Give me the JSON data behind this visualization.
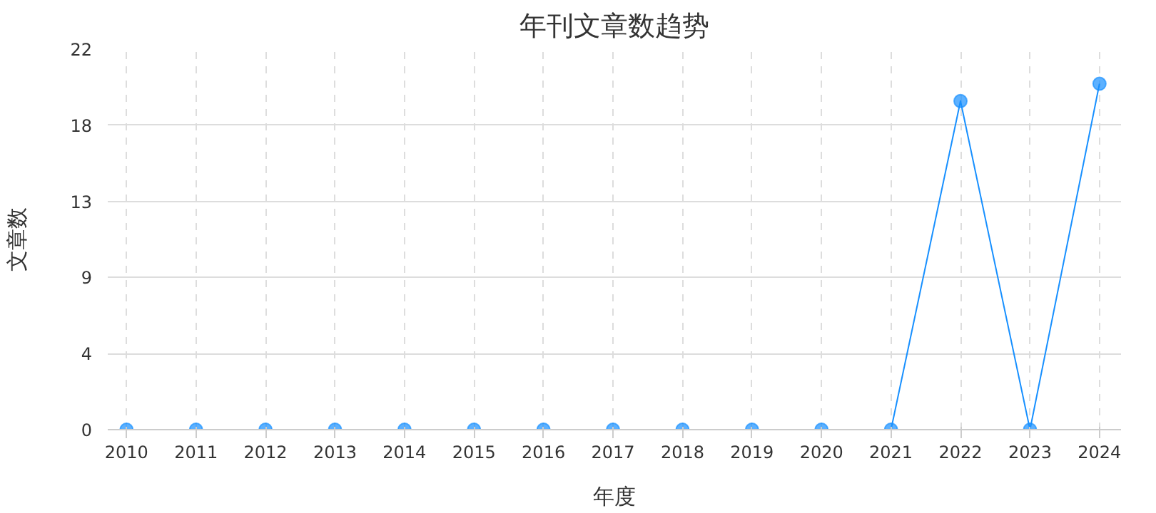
{
  "chart_data": {
    "type": "line",
    "title": "年刊文章数趋势",
    "xlabel": "年度",
    "ylabel": "文章数",
    "categories": [
      "2010",
      "2011",
      "2012",
      "2013",
      "2014",
      "2015",
      "2016",
      "2017",
      "2018",
      "2019",
      "2020",
      "2021",
      "2022",
      "2023",
      "2024"
    ],
    "series": [
      {
        "color": "#1890ff",
        "values": [
          0,
          0,
          0,
          0,
          0,
          0,
          0,
          0,
          0,
          0,
          0,
          0,
          19,
          0,
          20
        ]
      }
    ],
    "ylim": [
      0,
      22
    ],
    "yticks": [
      0,
      {
        "value": 4.4,
        "label": "4"
      },
      {
        "value": 8.8,
        "label": "9"
      },
      {
        "value": 13.2,
        "label": "13"
      },
      {
        "value": 17.6,
        "label": "18"
      },
      22
    ],
    "grid": true,
    "marker": "circle",
    "line_style": "solid"
  }
}
